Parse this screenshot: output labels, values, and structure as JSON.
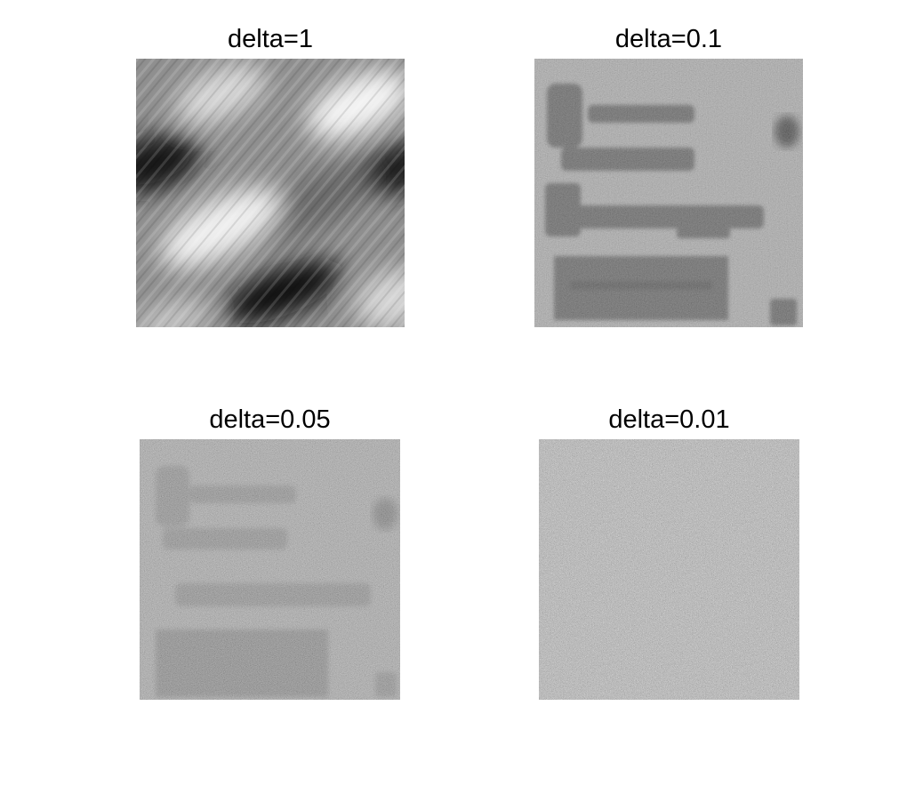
{
  "figure": {
    "panels": [
      {
        "title": "delta=1",
        "image": "motion-blurred-grayscale-restoration"
      },
      {
        "title": "delta=0.1",
        "image": "blurry-text-digital-image-processing"
      },
      {
        "title": "delta=0.05",
        "image": "noisy-text-digital-image-processing"
      },
      {
        "title": "delta=0.01",
        "image": "gray-noise-field"
      }
    ],
    "colors": {
      "background": "#ffffff",
      "text": "#000000",
      "mid_gray": "#8c8c8c"
    }
  }
}
